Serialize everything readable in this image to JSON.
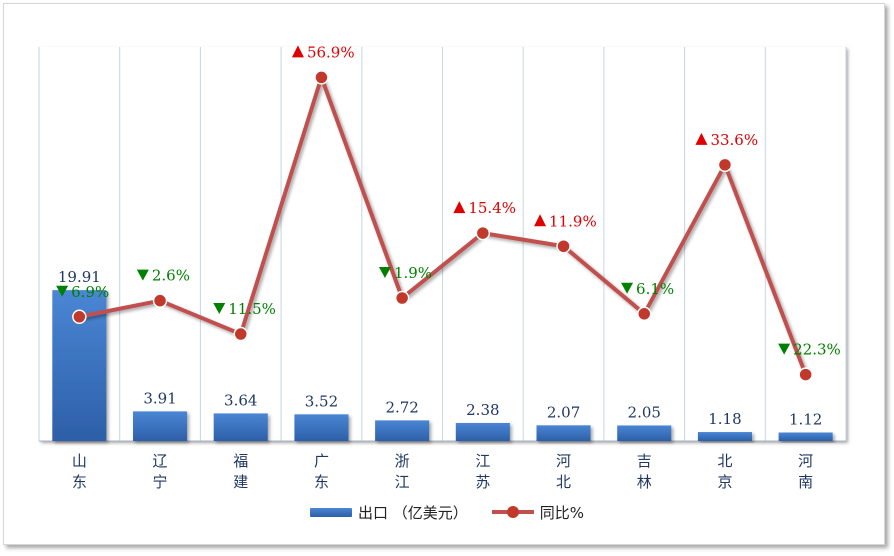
{
  "chart_data": {
    "type": "bar",
    "categories": [
      "山东",
      "辽宁",
      "福建",
      "广东",
      "浙江",
      "江苏",
      "河北",
      "吉林",
      "北京",
      "河南"
    ],
    "series": [
      {
        "name": "出口（亿美元）",
        "type": "bar",
        "values": [
          19.91,
          3.91,
          3.64,
          3.52,
          2.72,
          2.38,
          2.07,
          2.05,
          1.18,
          1.12
        ],
        "labels": [
          "19.91",
          "3.91",
          "3.64",
          "3.52",
          "2.72",
          "2.38",
          "2.07",
          "2.05",
          "1.18",
          "1.12"
        ]
      },
      {
        "name": "同比%",
        "type": "line",
        "values": [
          -6.9,
          -2.6,
          -11.5,
          56.9,
          -1.9,
          15.4,
          11.9,
          -6.1,
          33.6,
          -22.3
        ],
        "labels": [
          "6.9%",
          "2.6%",
          "11.5%",
          "56.9%",
          "1.9%",
          "15.4%",
          "11.9%",
          "6.1%",
          "33.6%",
          "22.3%"
        ]
      }
    ],
    "ylim": [
      0,
      52
    ],
    "y2lim": [
      -40,
      65
    ],
    "grid": true,
    "legend_position": "bottom"
  },
  "legend": {
    "bar_label": "出口 （亿美元）",
    "line_label": "同比%"
  },
  "colors": {
    "bar_top": "#4a86d4",
    "bar_bottom": "#2d5fa8",
    "line": "#c0504d",
    "marker": "#c0392b",
    "up": "#e00000",
    "down": "#008000",
    "bar_label": "#1f3864",
    "category_label": "#1f3864",
    "grid": "#c7d3e6"
  },
  "icons": {
    "up": "triangle-up-icon",
    "down": "triangle-down-icon"
  }
}
